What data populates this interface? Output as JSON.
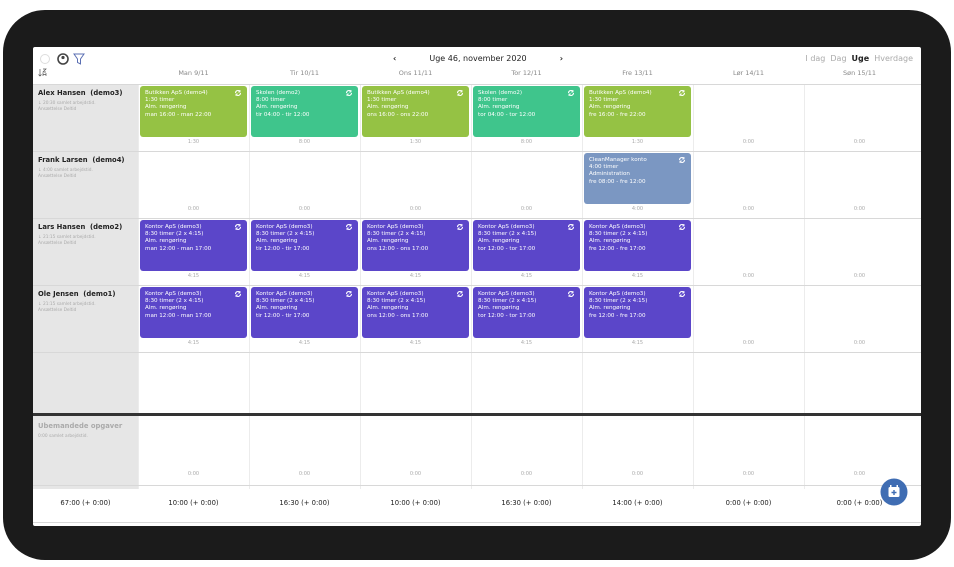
{
  "header": {
    "prev": "‹",
    "week": "Uge 46, november 2020",
    "next": "›",
    "views": [
      "I dag",
      "Dag",
      "Uge",
      "Hverdage"
    ],
    "active_view": 2
  },
  "days": [
    "Man 9/11",
    "Tir 10/11",
    "Ons 11/11",
    "Tor 12/11",
    "Fre 13/11",
    "Lør 14/11",
    "Søn 15/11"
  ],
  "employees": [
    {
      "name": "Alex Hansen  (demo3)",
      "summary": "20:30 samlet arbejdstid.",
      "contract": "Ansættelse Deltid",
      "cells": [
        {
          "card": {
            "color": "#95c244",
            "lines": [
              "Butikken ApS (demo4)",
              "1:30 timer",
              "Alm. rengøring",
              "man 16:00 - man 22:00"
            ]
          },
          "hours": "1:30"
        },
        {
          "card": {
            "color": "#3fc58c",
            "lines": [
              "Skolen (demo2)",
              "8:00 timer",
              "Alm. rengøring",
              "tir 04:00 - tir 12:00"
            ]
          },
          "hours": "8:00"
        },
        {
          "card": {
            "color": "#95c244",
            "lines": [
              "Butikken ApS (demo4)",
              "1:30 timer",
              "Alm. rengøring",
              "ons 16:00 - ons 22:00"
            ]
          },
          "hours": "1:30"
        },
        {
          "card": {
            "color": "#3fc58c",
            "lines": [
              "Skolen (demo2)",
              "8:00 timer",
              "Alm. rengøring",
              "tor 04:00 - tor 12:00"
            ]
          },
          "hours": "8:00"
        },
        {
          "card": {
            "color": "#95c244",
            "lines": [
              "Butikken ApS (demo4)",
              "1:30 timer",
              "Alm. rengøring",
              "fre 16:00 - fre 22:00"
            ]
          },
          "hours": "1:30"
        },
        {
          "hours": "0:00"
        },
        {
          "hours": "0:00"
        }
      ]
    },
    {
      "name": "Frank Larsen  (demo4)",
      "summary": "4:00 samlet arbejdstid.",
      "contract": "Ansættelse Deltid",
      "cells": [
        {
          "hours": "0:00"
        },
        {
          "hours": "0:00"
        },
        {
          "hours": "0:00"
        },
        {
          "hours": "0:00"
        },
        {
          "card": {
            "color": "#7b97c2",
            "lines": [
              "CleanManager konto",
              "4:00 timer",
              "Administration",
              "fre 08:00 - fre 12:00"
            ]
          },
          "hours": "4:00"
        },
        {
          "hours": "0:00"
        },
        {
          "hours": "0:00"
        }
      ]
    },
    {
      "name": "Lars Hansen  (demo2)",
      "summary": "21:15 samlet arbejdstid.",
      "contract": "Ansættelse Deltid",
      "cells": [
        {
          "card": {
            "color": "#5b46c9",
            "lines": [
              "Kontor ApS (demo3)",
              "8:30 timer (2 x 4:15)",
              "Alm. rengøring",
              "man 12:00 - man 17:00"
            ]
          },
          "hours": "4:15"
        },
        {
          "card": {
            "color": "#5b46c9",
            "lines": [
              "Kontor ApS (demo3)",
              "8:30 timer (2 x 4:15)",
              "Alm. rengøring",
              "tir 12:00 - tir 17:00"
            ]
          },
          "hours": "4:15"
        },
        {
          "card": {
            "color": "#5b46c9",
            "lines": [
              "Kontor ApS (demo3)",
              "8:30 timer (2 x 4:15)",
              "Alm. rengøring",
              "ons 12:00 - ons 17:00"
            ]
          },
          "hours": "4:15"
        },
        {
          "card": {
            "color": "#5b46c9",
            "lines": [
              "Kontor ApS (demo3)",
              "8:30 timer (2 x 4:15)",
              "Alm. rengøring",
              "tor 12:00 - tor 17:00"
            ]
          },
          "hours": "4:15"
        },
        {
          "card": {
            "color": "#5b46c9",
            "lines": [
              "Kontor ApS (demo3)",
              "8:30 timer (2 x 4:15)",
              "Alm. rengøring",
              "fre 12:00 - fre 17:00"
            ]
          },
          "hours": "4:15"
        },
        {
          "hours": "0:00"
        },
        {
          "hours": "0:00"
        }
      ]
    },
    {
      "name": "Ole Jensen  (demo1)",
      "summary": "21:15 samlet arbejdstid.",
      "contract": "Ansættelse Deltid",
      "cells": [
        {
          "card": {
            "color": "#5b46c9",
            "lines": [
              "Kontor ApS (demo3)",
              "8:30 timer (2 x 4:15)",
              "Alm. rengøring",
              "man 12:00 - man 17:00"
            ]
          },
          "hours": "4:15"
        },
        {
          "card": {
            "color": "#5b46c9",
            "lines": [
              "Kontor ApS (demo3)",
              "8:30 timer (2 x 4:15)",
              "Alm. rengøring",
              "tir 12:00 - tir 17:00"
            ]
          },
          "hours": "4:15"
        },
        {
          "card": {
            "color": "#5b46c9",
            "lines": [
              "Kontor ApS (demo3)",
              "8:30 timer (2 x 4:15)",
              "Alm. rengøring",
              "ons 12:00 - ons 17:00"
            ]
          },
          "hours": "4:15"
        },
        {
          "card": {
            "color": "#5b46c9",
            "lines": [
              "Kontor ApS (demo3)",
              "8:30 timer (2 x 4:15)",
              "Alm. rengøring",
              "tor 12:00 - tor 17:00"
            ]
          },
          "hours": "4:15"
        },
        {
          "card": {
            "color": "#5b46c9",
            "lines": [
              "Kontor ApS (demo3)",
              "8:30 timer (2 x 4:15)",
              "Alm. rengøring",
              "fre 12:00 - fre 17:00"
            ]
          },
          "hours": "4:15"
        },
        {
          "hours": "0:00"
        },
        {
          "hours": "0:00"
        }
      ]
    }
  ],
  "unmanned": {
    "title": "Ubemandede opgaver",
    "summary": "0:00 samlet arbejdstid.",
    "hours": [
      "0:00",
      "0:00",
      "0:00",
      "0:00",
      "0:00",
      "0:00",
      "0:00"
    ]
  },
  "totals": [
    "67:00 (+ 0:00)",
    "10:00 (+ 0:00)",
    "16:30 (+ 0:00)",
    "10:00 (+ 0:00)",
    "16:30 (+ 0:00)",
    "14:00 (+ 0:00)",
    "0:00 (+ 0:00)",
    "0:00 (+ 0:00)"
  ]
}
